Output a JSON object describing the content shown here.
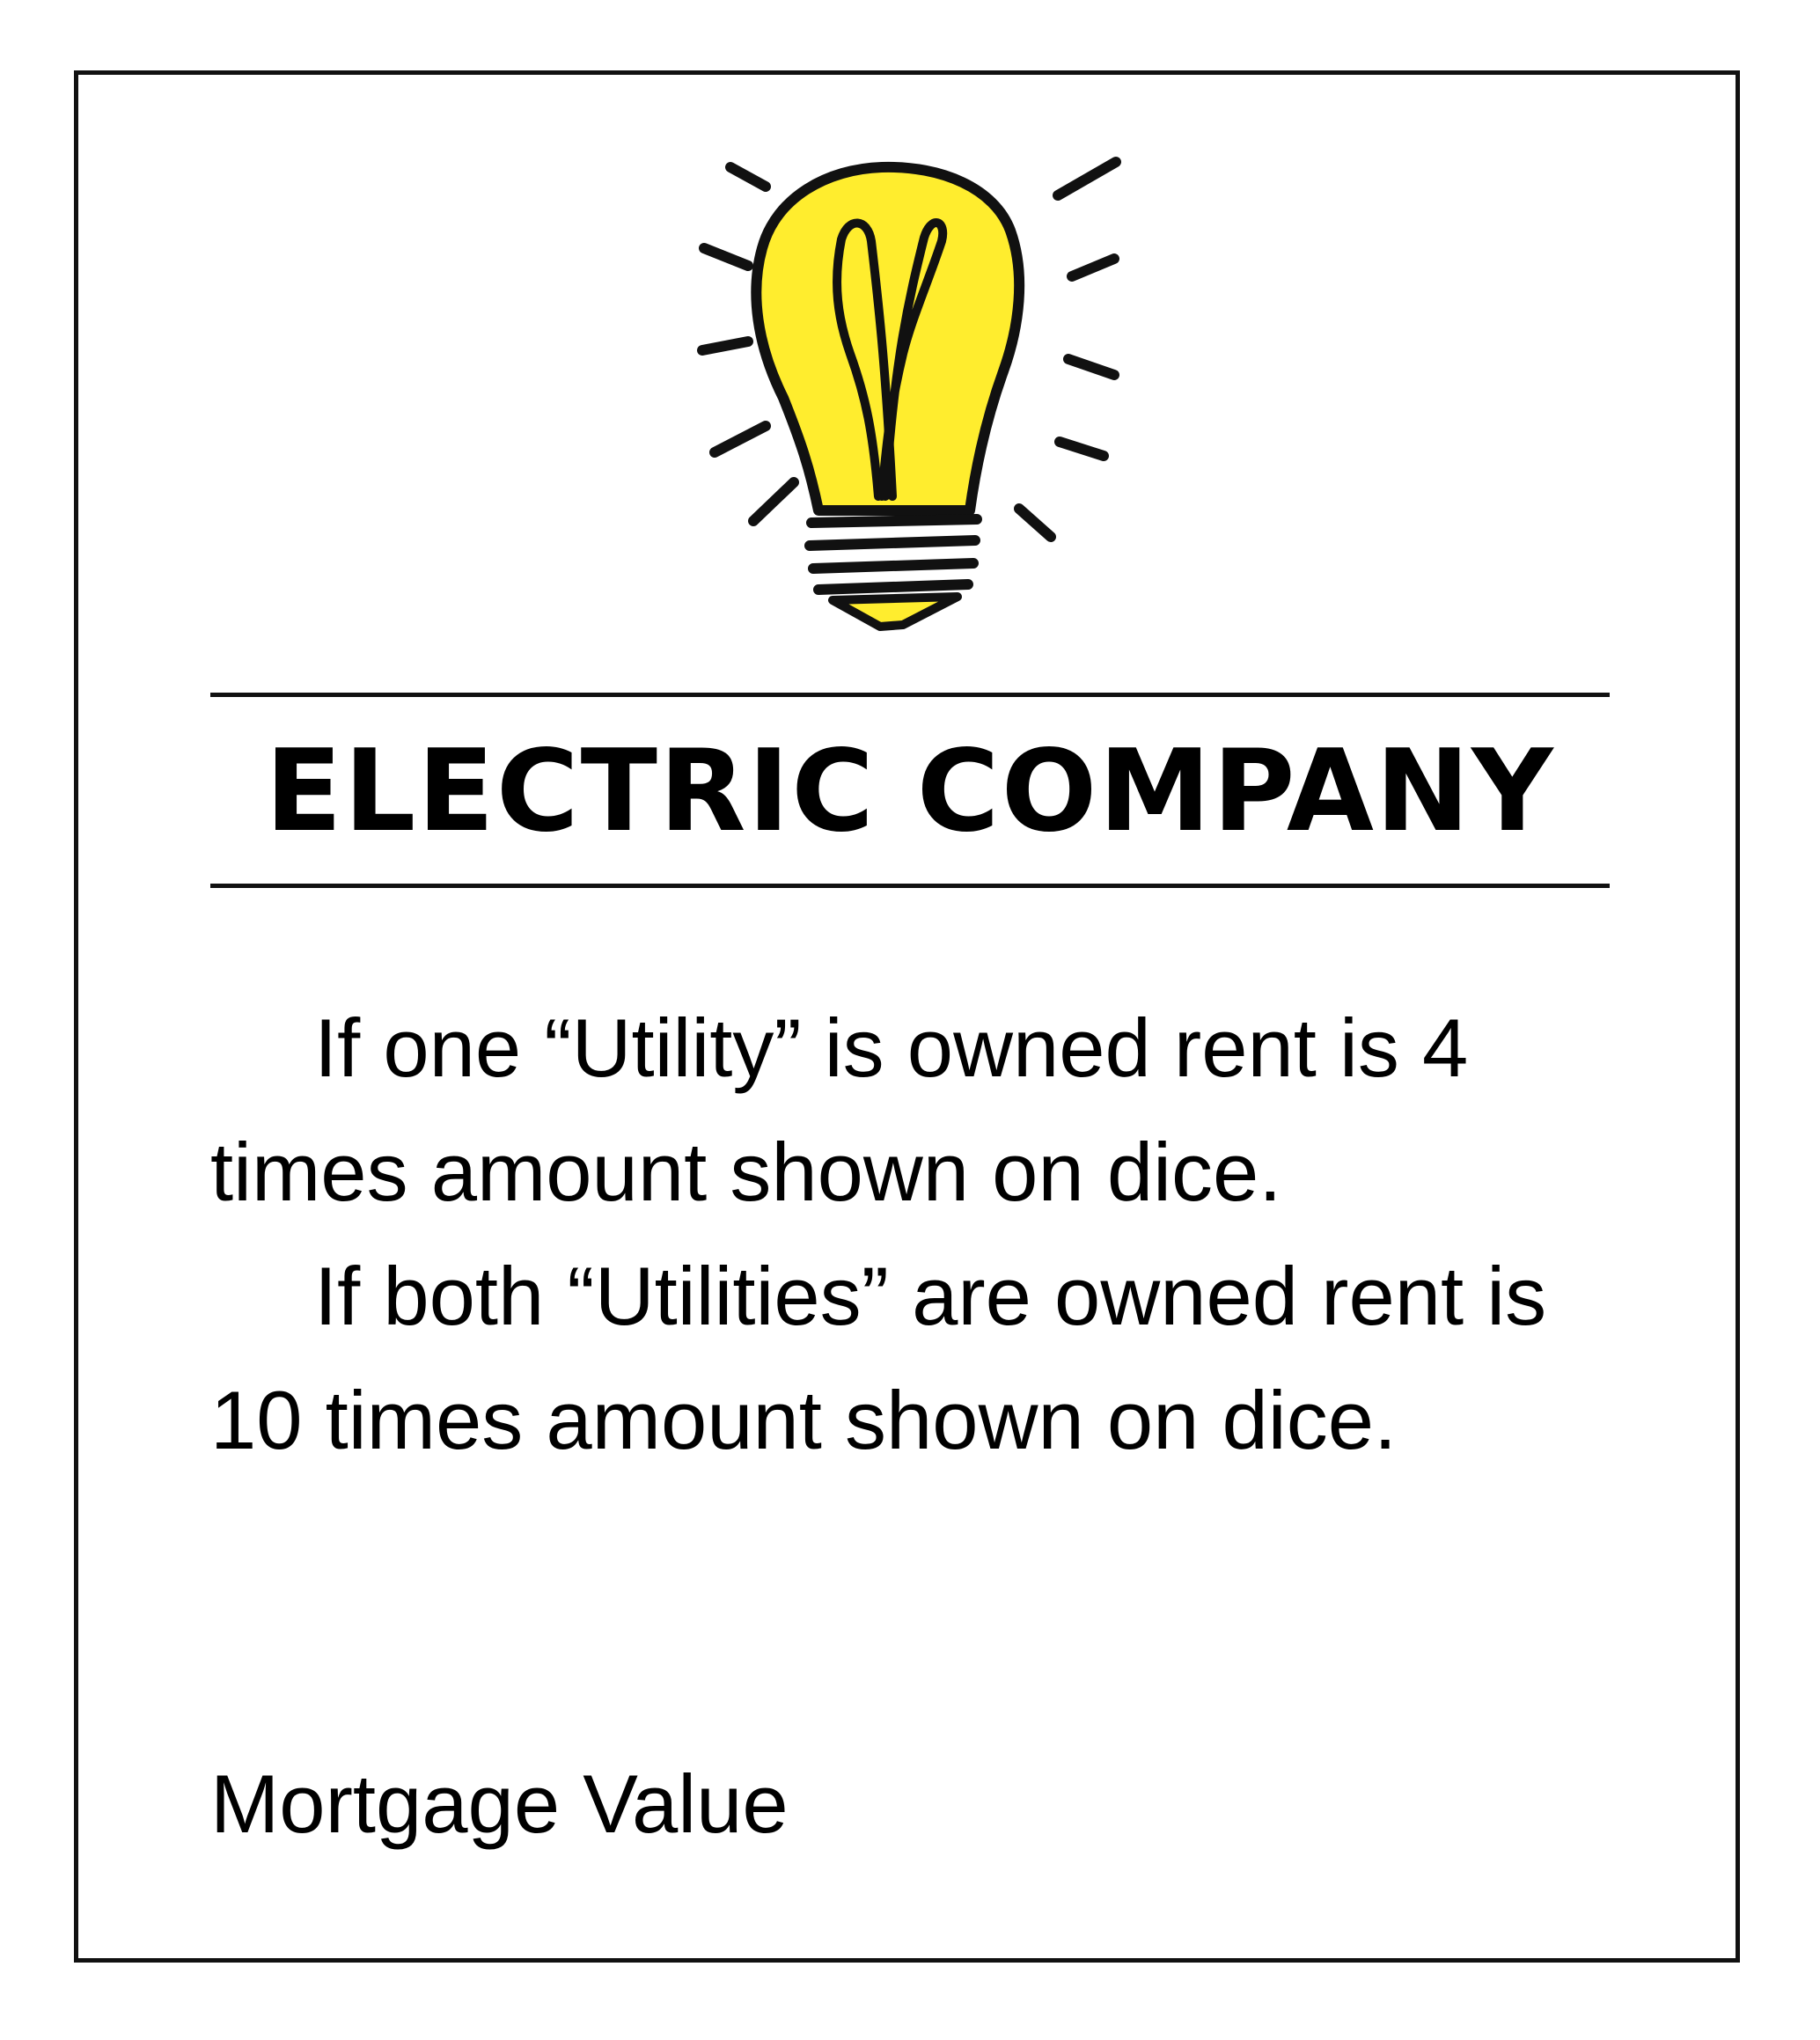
{
  "card": {
    "title": "ELECTRIC COMPANY",
    "rule_one_utility": "If one “Utility” is owned rent is 4 times amount shown on dice.",
    "rule_both_utilities": "If both “Utilities” are owned rent is 10 times amount shown on dice.",
    "mortgage_label": "Mortgage Value"
  },
  "icon": {
    "name": "lightbulb-icon",
    "fill_color": "#FFED2E",
    "stroke_color": "#111111"
  }
}
